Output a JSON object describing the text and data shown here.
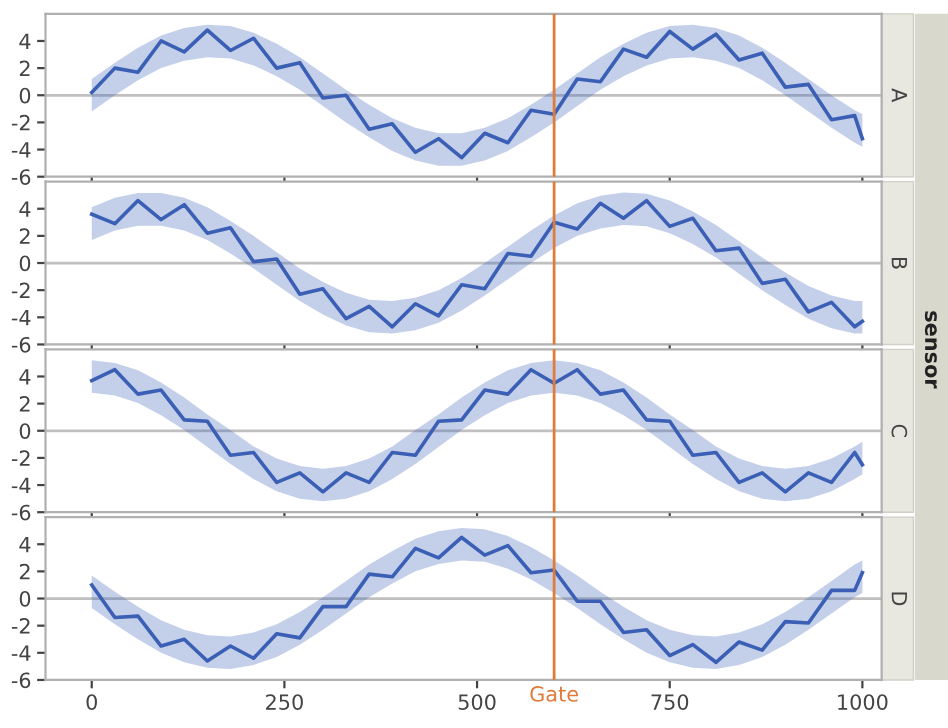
{
  "chart_data": [
    {
      "type": "line",
      "title": "A",
      "annotations": [
        "sensor"
      ],
      "tick_labels": "y",
      "x": [
        0,
        30,
        60,
        90,
        120,
        150,
        180,
        210,
        240,
        270,
        300,
        330,
        360,
        390,
        420,
        450,
        480,
        510,
        540,
        570,
        600,
        630,
        660,
        690,
        720,
        750,
        780,
        810,
        840,
        870,
        900,
        930,
        960,
        990,
        1000
      ],
      "xlim": [
        -60,
        1025
      ],
      "xticks": [
        0,
        250,
        500,
        750,
        1000
      ],
      "ylim": [
        -6,
        6
      ],
      "yticks": [
        -6,
        -4,
        -2,
        0,
        2,
        4
      ],
      "ref_lines": [
        {
          "axis": "y",
          "value": 0,
          "color": "#c0c0c0"
        },
        {
          "axis": "x",
          "value": 600,
          "color": "#e07b39"
        }
      ],
      "series": [
        {
          "color": "#3a5fb5",
          "values": [
            0.2,
            2.0,
            1.7,
            4.0,
            3.2,
            4.8,
            3.3,
            4.2,
            2.0,
            2.4,
            -0.2,
            0.0,
            -2.5,
            -2.1,
            -4.2,
            -3.2,
            -4.6,
            -2.8,
            -3.5,
            -1.1,
            -1.4,
            1.2,
            1.0,
            3.4,
            2.8,
            4.7,
            3.4,
            4.5,
            2.6,
            3.1,
            0.6,
            0.8,
            -1.8,
            -1.5,
            -3.2
          ],
          "lower": [
            -1.2,
            0,
            1.1,
            2.0,
            2.55,
            2.8,
            2.7,
            2.2,
            1.4,
            0.4,
            -0.8,
            -2.0,
            -3.1,
            -4.1,
            -4.8,
            -5.2,
            -5.2,
            -4.8,
            -4.1,
            -3.1,
            -2.0,
            -0.8,
            0.4,
            1.4,
            2.2,
            2.7,
            2.8,
            2.55,
            2.0,
            1.1,
            0,
            -1.2,
            -2.4,
            -3.5,
            -3.8
          ],
          "upper": [
            1.2,
            2.4,
            3.5,
            4.4,
            4.95,
            5.2,
            5.1,
            4.6,
            3.8,
            2.8,
            1.6,
            0.4,
            -0.7,
            -1.7,
            -2.4,
            -2.8,
            -2.8,
            -2.4,
            -1.7,
            -0.7,
            0.4,
            1.6,
            2.8,
            3.8,
            4.6,
            5.1,
            5.2,
            4.95,
            4.4,
            3.5,
            2.4,
            1.2,
            0,
            -1.1,
            -1.4
          ]
        }
      ]
    },
    {
      "type": "line",
      "title": "B",
      "tick_labels": "y",
      "x": [
        0,
        30,
        60,
        90,
        120,
        150,
        180,
        210,
        240,
        270,
        300,
        330,
        360,
        390,
        420,
        450,
        480,
        510,
        540,
        570,
        600,
        630,
        660,
        690,
        720,
        750,
        780,
        810,
        840,
        870,
        900,
        930,
        960,
        990,
        1000
      ],
      "xlim": [
        -60,
        1025
      ],
      "xticks": [
        0,
        250,
        500,
        750,
        1000
      ],
      "ylim": [
        -6,
        6
      ],
      "yticks": [
        -6,
        -4,
        -2,
        0,
        2,
        4
      ],
      "ref_lines": [
        {
          "axis": "y",
          "value": 0,
          "color": "#c0c0c0"
        },
        {
          "axis": "x",
          "value": 600,
          "color": "#e07b39"
        }
      ],
      "series": [
        {
          "color": "#3a5fb5",
          "values": [
            3.6,
            2.9,
            4.6,
            3.2,
            4.3,
            2.2,
            2.6,
            0.1,
            0.3,
            -2.3,
            -1.9,
            -4.1,
            -3.2,
            -4.7,
            -3.0,
            -3.9,
            -1.6,
            -1.9,
            0.7,
            0.5,
            3.0,
            2.5,
            4.4,
            3.3,
            4.6,
            2.7,
            3.3,
            0.9,
            1.1,
            -1.5,
            -1.2,
            -3.6,
            -2.9,
            -4.7,
            -4.3
          ],
          "lower": [
            1.7,
            2.4,
            2.75,
            2.75,
            2.4,
            1.7,
            0.7,
            -0.4,
            -1.6,
            -2.8,
            -3.8,
            -4.6,
            -5.1,
            -5.2,
            -4.95,
            -4.4,
            -3.5,
            -2.4,
            -1.2,
            0,
            1.1,
            2.0,
            2.55,
            2.8,
            2.7,
            2.2,
            1.4,
            0.4,
            -0.8,
            -2.0,
            -3.1,
            -4.1,
            -4.8,
            -5.2,
            -5.2
          ],
          "upper": [
            4.1,
            4.8,
            5.15,
            5.15,
            4.8,
            4.1,
            3.1,
            2.0,
            0.8,
            -0.4,
            -1.4,
            -2.2,
            -2.7,
            -2.8,
            -2.55,
            -2.0,
            -1.1,
            0,
            1.2,
            2.4,
            3.5,
            4.4,
            4.95,
            5.2,
            5.1,
            4.6,
            3.8,
            2.8,
            1.6,
            0.4,
            -0.7,
            -1.7,
            -2.4,
            -2.8,
            -2.8
          ]
        }
      ]
    },
    {
      "type": "line",
      "title": "C",
      "tick_labels": "y",
      "x": [
        0,
        30,
        60,
        90,
        120,
        150,
        180,
        210,
        240,
        270,
        300,
        330,
        360,
        390,
        420,
        450,
        480,
        510,
        540,
        570,
        600,
        630,
        660,
        690,
        720,
        750,
        780,
        810,
        840,
        870,
        900,
        930,
        960,
        990,
        1000
      ],
      "xlim": [
        -60,
        1025
      ],
      "xticks": [
        0,
        250,
        500,
        750,
        1000
      ],
      "ylim": [
        -6,
        6
      ],
      "yticks": [
        -6,
        -4,
        -2,
        0,
        2,
        4
      ],
      "ref_lines": [
        {
          "axis": "y",
          "value": 0,
          "color": "#c0c0c0"
        },
        {
          "axis": "x",
          "value": 600,
          "color": "#e07b39"
        }
      ],
      "series": [
        {
          "color": "#3a5fb5",
          "values": [
            3.7,
            4.5,
            2.7,
            3.0,
            0.8,
            0.7,
            -1.8,
            -1.6,
            -3.8,
            -3.1,
            -4.5,
            -3.1,
            -3.8,
            -1.6,
            -1.8,
            0.7,
            0.8,
            3.0,
            2.7,
            4.5,
            3.5,
            4.5,
            2.7,
            3.0,
            0.8,
            0.7,
            -1.8,
            -1.6,
            -3.8,
            -3.1,
            -4.5,
            -3.1,
            -3.8,
            -1.6,
            -2.5
          ],
          "lower": [
            2.8,
            2.6,
            2.05,
            1.15,
            0.05,
            -1.2,
            -2.45,
            -3.55,
            -4.45,
            -5.0,
            -5.2,
            -5.0,
            -4.45,
            -3.55,
            -2.45,
            -1.2,
            0.05,
            1.15,
            2.05,
            2.6,
            2.8,
            2.6,
            2.05,
            1.15,
            0.05,
            -1.2,
            -2.45,
            -3.55,
            -4.45,
            -5.0,
            -5.2,
            -5.0,
            -4.45,
            -3.55,
            -3.2
          ],
          "upper": [
            5.2,
            5.0,
            4.45,
            3.55,
            2.45,
            1.2,
            0.05,
            -1.15,
            -2.05,
            -2.6,
            -2.8,
            -2.6,
            -2.05,
            -1.15,
            0.05,
            1.2,
            2.45,
            3.55,
            4.45,
            5.0,
            5.2,
            5.0,
            4.45,
            3.55,
            2.45,
            1.2,
            0.05,
            -1.15,
            -2.05,
            -2.6,
            -2.8,
            -2.6,
            -2.05,
            -1.15,
            -0.8
          ]
        }
      ]
    },
    {
      "type": "line",
      "title": "D",
      "x": [
        0,
        30,
        60,
        90,
        120,
        150,
        180,
        210,
        240,
        270,
        300,
        330,
        360,
        390,
        420,
        450,
        480,
        510,
        540,
        570,
        600,
        630,
        660,
        690,
        720,
        750,
        780,
        810,
        840,
        870,
        900,
        930,
        960,
        990,
        1000
      ],
      "xlim": [
        -60,
        1025
      ],
      "xticks": [
        0,
        250,
        500,
        750,
        1000
      ],
      "ylim": [
        -6,
        6
      ],
      "yticks": [
        -6,
        -4,
        -2,
        0,
        2,
        4
      ],
      "ref_lines": [
        {
          "axis": "y",
          "value": 0,
          "color": "#c0c0c0"
        },
        {
          "axis": "x",
          "value": 600,
          "label": "Gate",
          "color": "#e07b39"
        }
      ],
      "series": [
        {
          "color": "#3a5fb5",
          "values": [
            1.0,
            -1.4,
            -1.3,
            -3.5,
            -3.0,
            -4.6,
            -3.5,
            -4.4,
            -2.6,
            -2.9,
            -0.6,
            -0.6,
            1.8,
            1.6,
            3.7,
            3.0,
            4.5,
            3.2,
            3.9,
            1.9,
            2.1,
            -0.2,
            -0.2,
            -2.5,
            -2.3,
            -4.2,
            -3.4,
            -4.7,
            -3.2,
            -3.8,
            -1.7,
            -1.8,
            0.6,
            0.6,
            1.9
          ],
          "lower": [
            -0.7,
            -1.9,
            -3.0,
            -4.0,
            -4.7,
            -5.1,
            -5.2,
            -4.9,
            -4.3,
            -3.4,
            -2.3,
            -1.1,
            0.1,
            1.1,
            2.0,
            2.55,
            2.8,
            2.7,
            2.2,
            1.4,
            0.4,
            -0.7,
            -1.9,
            -3.0,
            -4.0,
            -4.7,
            -5.1,
            -5.2,
            -4.9,
            -4.3,
            -3.4,
            -2.3,
            -1.1,
            0.1,
            0.4
          ],
          "upper": [
            1.7,
            0.5,
            -0.6,
            -1.6,
            -2.3,
            -2.7,
            -2.8,
            -2.5,
            -1.9,
            -1.0,
            0.1,
            1.3,
            2.5,
            3.5,
            4.4,
            4.95,
            5.2,
            5.1,
            4.6,
            3.8,
            2.8,
            1.7,
            0.5,
            -0.6,
            -1.6,
            -2.3,
            -2.7,
            -2.8,
            -2.5,
            -1.9,
            -1.0,
            0.1,
            1.3,
            2.5,
            2.8
          ]
        }
      ]
    }
  ]
}
